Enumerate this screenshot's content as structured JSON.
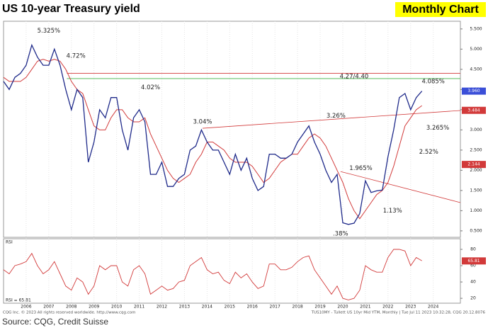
{
  "chart_data": {
    "type": "line",
    "title": "US 10-year Treasury yield",
    "badge": "Monthly Chart",
    "source": "Source: CQG, Credit Suisse",
    "copyright": "CQG Inc. © 2023 All rights reserved worldwide. http://www.cqg.com",
    "instrument": "TUS10MY - Tullett US 10yr Mid YTM, Monthly | Tue Jul 11 2023 10:32:28, CQG 20.12.8076",
    "x": [
      2005,
      2005.25,
      2005.5,
      2005.75,
      2006,
      2006.25,
      2006.5,
      2006.75,
      2007,
      2007.25,
      2007.5,
      2007.75,
      2008,
      2008.25,
      2008.5,
      2008.75,
      2009,
      2009.25,
      2009.5,
      2009.75,
      2010,
      2010.25,
      2010.5,
      2010.75,
      2011,
      2011.25,
      2011.5,
      2011.75,
      2012,
      2012.25,
      2012.5,
      2012.75,
      2013,
      2013.25,
      2013.5,
      2013.75,
      2014,
      2014.25,
      2014.5,
      2014.75,
      2015,
      2015.25,
      2015.5,
      2015.75,
      2016,
      2016.25,
      2016.5,
      2016.75,
      2017,
      2017.25,
      2017.5,
      2017.75,
      2018,
      2018.25,
      2018.5,
      2018.75,
      2019,
      2019.25,
      2019.5,
      2019.75,
      2020,
      2020.25,
      2020.5,
      2020.75,
      2021,
      2021.25,
      2021.5,
      2021.75,
      2022,
      2022.25,
      2022.5,
      2022.75,
      2023,
      2023.25,
      2023.5
    ],
    "series": [
      {
        "name": "TUS10MY",
        "color": "#1f2a8a",
        "values": [
          4.2,
          4.0,
          4.3,
          4.4,
          4.6,
          5.1,
          4.8,
          4.6,
          4.6,
          5.0,
          4.6,
          4.0,
          3.5,
          4.0,
          3.8,
          2.2,
          2.7,
          3.5,
          3.3,
          3.8,
          3.8,
          3.0,
          2.5,
          3.3,
          3.5,
          3.2,
          1.9,
          1.9,
          2.2,
          1.6,
          1.6,
          1.8,
          1.9,
          2.5,
          2.6,
          3.0,
          2.7,
          2.5,
          2.5,
          2.2,
          1.9,
          2.4,
          2.0,
          2.3,
          1.8,
          1.5,
          1.6,
          2.4,
          2.4,
          2.3,
          2.3,
          2.4,
          2.7,
          2.9,
          3.1,
          2.7,
          2.4,
          2.0,
          1.7,
          1.9,
          0.7,
          0.66,
          0.69,
          0.93,
          1.74,
          1.45,
          1.49,
          1.51,
          2.34,
          3.0,
          3.8,
          3.9,
          3.5,
          3.8,
          3.96
        ]
      }
    ],
    "moving_average": {
      "color": "#d23a3a",
      "values": [
        4.3,
        4.2,
        4.2,
        4.2,
        4.3,
        4.5,
        4.7,
        4.75,
        4.7,
        4.75,
        4.7,
        4.5,
        4.2,
        4.0,
        3.9,
        3.5,
        3.1,
        3.0,
        3.0,
        3.3,
        3.5,
        3.5,
        3.3,
        3.2,
        3.2,
        3.3,
        2.9,
        2.6,
        2.3,
        2.0,
        1.8,
        1.7,
        1.8,
        1.9,
        2.2,
        2.4,
        2.7,
        2.7,
        2.6,
        2.5,
        2.3,
        2.2,
        2.2,
        2.2,
        2.1,
        1.9,
        1.7,
        1.8,
        2.0,
        2.2,
        2.3,
        2.4,
        2.4,
        2.6,
        2.8,
        2.9,
        2.8,
        2.6,
        2.3,
        2.0,
        1.7,
        1.3,
        1.0,
        0.8,
        1.0,
        1.2,
        1.4,
        1.5,
        1.7,
        2.1,
        2.6,
        3.1,
        3.3,
        3.5,
        3.6
      ]
    },
    "xlim": [
      2005,
      2025.2
    ],
    "xticks": [
      2006,
      2007,
      2008,
      2009,
      2010,
      2011,
      2012,
      2013,
      2014,
      2015,
      2016,
      2017,
      2018,
      2019,
      2020,
      2021,
      2022,
      2023,
      2024
    ],
    "ylim": [
      0.34,
      5.69
    ],
    "yticks": [
      {
        "value": 5.5,
        "label": "5.500"
      },
      {
        "value": 5.0,
        "label": "5.000"
      },
      {
        "value": 4.5,
        "label": "4.500"
      },
      {
        "value": 4.0,
        "label": "4.000"
      },
      {
        "value": 3.5,
        "label": "3.500"
      },
      {
        "value": 3.0,
        "label": "3.000"
      },
      {
        "value": 2.5,
        "label": "2.500"
      },
      {
        "value": 2.0,
        "label": "2.000"
      },
      {
        "value": 1.5,
        "label": "1.500"
      },
      {
        "value": 1.0,
        "label": "1.000"
      },
      {
        "value": 0.5,
        "label": "0.500"
      }
    ],
    "reference_lines": [
      {
        "value": 4.27,
        "color": "#3cb043"
      },
      {
        "value": 4.4,
        "color": "#d23a3a"
      }
    ],
    "trend_lines": [
      {
        "x": [
          2013.8,
          2025.2
        ],
        "y": [
          3.04,
          3.48
        ],
        "color": "#d23a3a"
      },
      {
        "x": [
          2019.9,
          2025.2
        ],
        "y": [
          1.97,
          1.2
        ],
        "color": "#d23a3a"
      }
    ],
    "price_markers": [
      {
        "value": 3.96,
        "label": "3.960",
        "color": "#3b4fd8"
      },
      {
        "value": 3.484,
        "label": "3.484",
        "color": "#d23a3a"
      },
      {
        "value": 2.144,
        "label": "2.144",
        "color": "#d23a3a"
      }
    ],
    "annotations": [
      "5.325%",
      "4.72%",
      "4.02%",
      "3.04%",
      "3.26%",
      "1.965%",
      "1.13%",
      ".38%",
      "4.085%",
      "3.265%",
      "2.52%",
      "4.27/4.40"
    ],
    "rsi": {
      "label": "RSI",
      "footer": "RSI = 65.81",
      "color": "#d23a3a",
      "values": [
        55,
        50,
        60,
        62,
        65,
        75,
        60,
        50,
        55,
        65,
        50,
        35,
        30,
        45,
        40,
        25,
        35,
        60,
        55,
        60,
        60,
        40,
        35,
        55,
        60,
        50,
        25,
        30,
        35,
        30,
        32,
        40,
        42,
        60,
        65,
        70,
        55,
        50,
        52,
        42,
        38,
        52,
        45,
        50,
        40,
        32,
        35,
        62,
        62,
        55,
        55,
        58,
        65,
        70,
        72,
        55,
        45,
        35,
        25,
        35,
        20,
        18,
        20,
        30,
        60,
        55,
        52,
        52,
        70,
        80,
        80,
        78,
        60,
        70,
        66
      ],
      "ylim": [
        14,
        93
      ],
      "yticks": [
        80,
        60,
        40,
        20
      ],
      "marker": {
        "value": 65.81,
        "label": "65.81",
        "color": "#d23a3a"
      }
    }
  }
}
